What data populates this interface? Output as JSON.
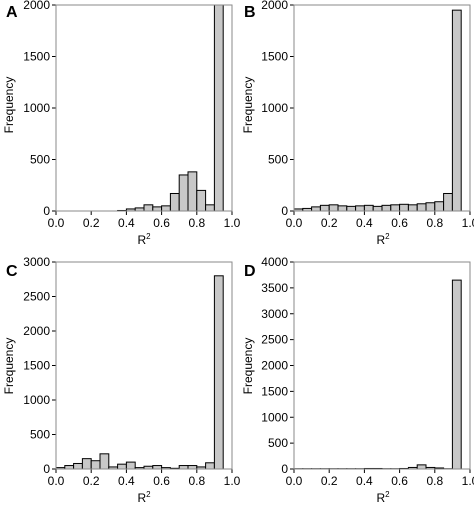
{
  "chart_data": [
    {
      "panel": "A",
      "type": "bar",
      "xlabel": "R",
      "xlabel_sup": "2",
      "ylabel": "Frequency",
      "xlim": [
        0,
        1
      ],
      "ylim": [
        0,
        2000
      ],
      "xticks": [
        "0.0",
        "0.2",
        "0.4",
        "0.6",
        "0.8",
        "1.0"
      ],
      "yticks": [
        "0",
        "500",
        "1000",
        "1500",
        "2000"
      ],
      "ytick_values": [
        0,
        500,
        1000,
        1500,
        2000
      ],
      "bin_width": 0.05,
      "bins_start": 0.0,
      "values": [
        0,
        0,
        0,
        0,
        0,
        0,
        0,
        5,
        20,
        30,
        60,
        40,
        50,
        170,
        350,
        380,
        200,
        60,
        2050,
        0
      ]
    },
    {
      "panel": "B",
      "type": "bar",
      "xlabel": "R",
      "xlabel_sup": "2",
      "ylabel": "Frequency",
      "xlim": [
        0,
        1
      ],
      "ylim": [
        0,
        2000
      ],
      "xticks": [
        "0.0",
        "0.2",
        "0.4",
        "0.6",
        "0.8",
        "1.0"
      ],
      "yticks": [
        "0",
        "500",
        "1000",
        "1500",
        "2000"
      ],
      "ytick_values": [
        0,
        500,
        1000,
        1500,
        2000
      ],
      "bin_width": 0.05,
      "bins_start": 0.0,
      "values": [
        20,
        25,
        40,
        55,
        60,
        50,
        45,
        50,
        55,
        45,
        55,
        60,
        65,
        60,
        70,
        80,
        90,
        170,
        1950,
        0
      ]
    },
    {
      "panel": "C",
      "type": "bar",
      "xlabel": "R",
      "xlabel_sup": "2",
      "ylabel": "Frequency",
      "xlim": [
        0,
        1
      ],
      "ylim": [
        0,
        3000
      ],
      "xticks": [
        "0.0",
        "0.2",
        "0.4",
        "0.6",
        "0.8",
        "1.0"
      ],
      "yticks": [
        "0",
        "500",
        "1000",
        "1500",
        "2000",
        "2500",
        "3000"
      ],
      "ytick_values": [
        0,
        500,
        1000,
        1500,
        2000,
        2500,
        3000
      ],
      "bin_width": 0.05,
      "bins_start": 0.0,
      "values": [
        20,
        50,
        80,
        150,
        120,
        220,
        30,
        70,
        100,
        20,
        40,
        50,
        20,
        10,
        50,
        50,
        30,
        90,
        2800,
        0
      ]
    },
    {
      "panel": "D",
      "type": "bar",
      "xlabel": "R",
      "xlabel_sup": "2",
      "ylabel": "Frequency",
      "xlim": [
        0,
        1
      ],
      "ylim": [
        0,
        4000
      ],
      "xticks": [
        "0.0",
        "0.2",
        "0.4",
        "0.6",
        "0.8",
        "1.0"
      ],
      "yticks": [
        "0",
        "500",
        "1000",
        "1500",
        "2000",
        "2500",
        "3000",
        "3500",
        "4000"
      ],
      "ytick_values": [
        0,
        500,
        1000,
        1500,
        2000,
        2500,
        3000,
        3500,
        4000
      ],
      "bin_width": 0.05,
      "bins_start": 0.0,
      "values": [
        5,
        5,
        5,
        5,
        5,
        5,
        5,
        5,
        10,
        10,
        5,
        5,
        10,
        30,
        80,
        30,
        20,
        5,
        3650,
        0
      ]
    }
  ],
  "style": {
    "bar_fill": "#c8c8c8",
    "bar_stroke": "#000000",
    "frame_color": "#8a8a8a"
  }
}
